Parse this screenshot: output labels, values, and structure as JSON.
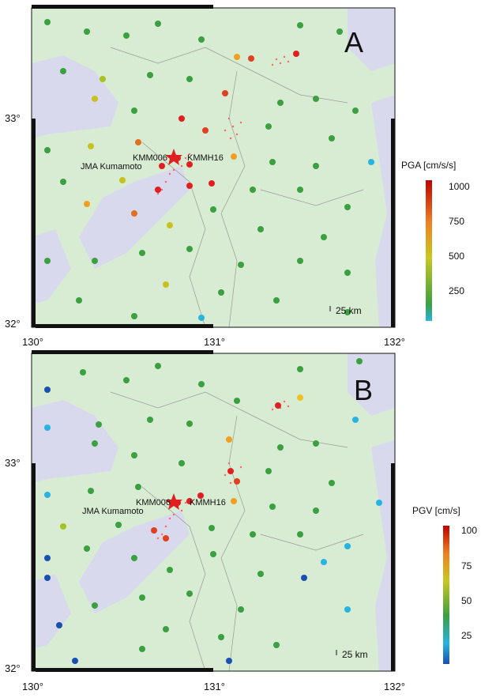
{
  "panels": [
    {
      "id": "A",
      "letter": "A",
      "colorbar": {
        "title": "PGA [cm/s/s]",
        "ticks": [
          "1000",
          "750",
          "500",
          "250"
        ]
      },
      "scale_label": "25 km",
      "station_labels": [
        "KMM006",
        "KMMH16",
        "JMA Kumamoto"
      ],
      "lat_labels": [
        "33°",
        "32°"
      ],
      "lon_labels": [
        "130°",
        "131°",
        "132°"
      ]
    },
    {
      "id": "B",
      "letter": "B",
      "colorbar": {
        "title": "PGV [cm/s]",
        "ticks": [
          "100",
          "75",
          "50",
          "25"
        ]
      },
      "scale_label": "25 km",
      "station_labels": [
        "KMM006",
        "KMMH16",
        "JMA Kumamoto"
      ],
      "lat_labels": [
        "33°",
        "32°"
      ],
      "lon_labels": [
        "130°",
        "131°",
        "132°"
      ]
    }
  ],
  "colors": {
    "land": "#d7ecd2",
    "sea": "#d9d9ee",
    "high": "#e02020",
    "mid": "#f0a020",
    "low": "#3aa040",
    "lowest": "#1a6fb0",
    "aftershock": "#ff6666"
  }
}
